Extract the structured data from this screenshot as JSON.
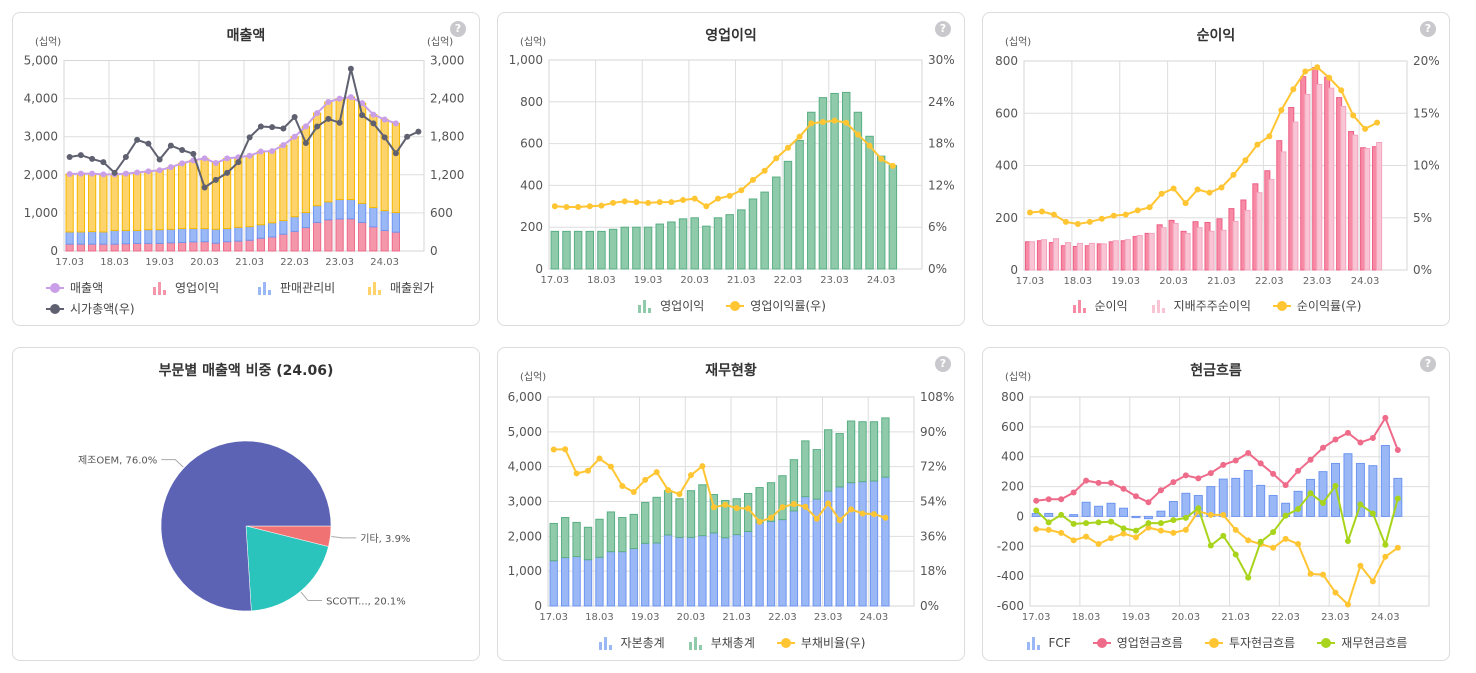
{
  "help_label": "?",
  "chart_data": [
    {
      "type": "combo",
      "title": "매출액",
      "unit_left": "(십억)",
      "unit_right": "(십억)",
      "ylim_left": [
        0,
        5000
      ],
      "yticks_left": [
        "0",
        "1,000",
        "2,000",
        "3,000",
        "4,000",
        "5,000"
      ],
      "ylim_right": [
        0,
        3000
      ],
      "yticks_right": [
        "0",
        "600",
        "1,200",
        "1,800",
        "2,400",
        "3,000"
      ],
      "x_ticks": [
        "17.03",
        "18.03",
        "19.03",
        "20.03",
        "21.03",
        "22.03",
        "23.03",
        "24.03"
      ],
      "grid": true,
      "legend": "bottom",
      "series": [
        {
          "name": "매출액",
          "kind": "line",
          "axis": "left",
          "color": "#c9a0e8",
          "values": [
            2020,
            2030,
            2030,
            2010,
            2010,
            2030,
            2060,
            2090,
            2120,
            2200,
            2300,
            2380,
            2430,
            2310,
            2430,
            2460,
            2500,
            2610,
            2620,
            2780,
            3000,
            3270,
            3620,
            3910,
            4000,
            4040,
            3880,
            3580,
            3450,
            3350
          ]
        },
        {
          "name": "영업이익",
          "kind": "bar",
          "axis": "left",
          "stack": 0,
          "color": "#f497ab",
          "border": "#ee6b8a",
          "values": [
            180,
            180,
            180,
            180,
            180,
            190,
            200,
            200,
            200,
            215,
            225,
            240,
            245,
            205,
            245,
            260,
            283,
            335,
            368,
            440,
            515,
            615,
            750,
            820,
            840,
            845,
            750,
            635,
            540,
            495
          ]
        },
        {
          "name": "판매관리비",
          "kind": "bar",
          "axis": "left",
          "stack": 1,
          "color": "#9ab8f5",
          "border": "#6f95f0",
          "values": [
            320,
            320,
            330,
            320,
            360,
            350,
            340,
            360,
            360,
            355,
            365,
            350,
            345,
            365,
            345,
            360,
            357,
            355,
            372,
            360,
            385,
            395,
            440,
            470,
            510,
            505,
            500,
            505,
            520,
            515
          ]
        },
        {
          "name": "매출원가",
          "kind": "bar",
          "axis": "left",
          "stack": 2,
          "color": "#ffd36b",
          "border": "#f5b800",
          "values": [
            1520,
            1530,
            1520,
            1510,
            1470,
            1490,
            1520,
            1530,
            1560,
            1630,
            1710,
            1790,
            1840,
            1740,
            1840,
            1840,
            1860,
            1920,
            1880,
            1980,
            2100,
            2260,
            2430,
            2620,
            2650,
            2690,
            2630,
            2440,
            2390,
            2340
          ]
        },
        {
          "name": "시가총액(우)",
          "kind": "line",
          "axis": "right",
          "color": "#5f6170",
          "values": [
            1480,
            1510,
            1450,
            1400,
            1230,
            1480,
            1750,
            1690,
            1440,
            1660,
            1590,
            1530,
            1000,
            1120,
            1230,
            1400,
            1790,
            1960,
            1950,
            1930,
            2110,
            1700,
            1960,
            2080,
            2020,
            2870,
            2140,
            2010,
            1790,
            1540,
            1800,
            1880
          ]
        }
      ]
    },
    {
      "type": "combo",
      "title": "영업이익",
      "unit_left": "(십억)",
      "ylim_left": [
        0,
        1000
      ],
      "yticks_left": [
        "0",
        "200",
        "400",
        "600",
        "800",
        "1,000"
      ],
      "ylim_right": [
        0,
        30
      ],
      "yticks_right": [
        "0%",
        "6%",
        "12%",
        "18%",
        "24%",
        "30%"
      ],
      "x_ticks": [
        "17.03",
        "18.03",
        "19.03",
        "20.03",
        "21.03",
        "22.03",
        "23.03",
        "24.03"
      ],
      "grid": true,
      "legend": "bottom",
      "series": [
        {
          "name": "영업이익",
          "kind": "bar",
          "axis": "left",
          "color": "#8fcbab",
          "border": "#5aae84",
          "values": [
            180,
            180,
            180,
            180,
            180,
            190,
            200,
            200,
            200,
            215,
            225,
            240,
            245,
            205,
            245,
            260,
            283,
            335,
            368,
            440,
            515,
            615,
            750,
            820,
            840,
            845,
            750,
            635,
            540,
            495
          ]
        },
        {
          "name": "영업이익률(우)",
          "kind": "line",
          "axis": "right",
          "color": "#ffc533",
          "values": [
            9.0,
            8.9,
            8.9,
            9.0,
            9.1,
            9.5,
            9.7,
            9.6,
            9.5,
            9.6,
            9.6,
            9.9,
            10.1,
            9.0,
            10.1,
            10.5,
            11.3,
            12.8,
            14.1,
            15.9,
            17.4,
            19.0,
            20.9,
            21.1,
            21.3,
            21.0,
            19.3,
            17.7,
            15.8,
            14.8
          ]
        }
      ]
    },
    {
      "type": "combo",
      "title": "순이익",
      "unit_left": "(십억)",
      "ylim_left": [
        0,
        800
      ],
      "yticks_left": [
        "0",
        "200",
        "400",
        "600",
        "800"
      ],
      "ylim_right": [
        0,
        20
      ],
      "yticks_right": [
        "0%",
        "5%",
        "10%",
        "15%",
        "20%"
      ],
      "x_ticks": [
        "17.03",
        "18.03",
        "19.03",
        "20.03",
        "21.03",
        "22.03",
        "23.03",
        "24.03"
      ],
      "grid": true,
      "legend": "bottom",
      "series": [
        {
          "name": "순이익",
          "kind": "bar",
          "axis": "left",
          "group": 0,
          "color": "#f78aa5",
          "border": "#ee5f86",
          "values": [
            108,
            112,
            105,
            93,
            90,
            93,
            100,
            108,
            112,
            128,
            140,
            173,
            190,
            148,
            185,
            182,
            196,
            235,
            268,
            330,
            380,
            495,
            622,
            740,
            775,
            738,
            660,
            530,
            468,
            472
          ]
        },
        {
          "name": "지배주주순이익",
          "kind": "bar",
          "axis": "left",
          "group": 1,
          "color": "#f9c5d5",
          "border": "#f3a6bf",
          "values": [
            108,
            116,
            120,
            105,
            102,
            102,
            100,
            112,
            116,
            132,
            140,
            162,
            178,
            140,
            162,
            148,
            152,
            186,
            228,
            296,
            346,
            452,
            566,
            672,
            710,
            696,
            626,
            516,
            465,
            488
          ]
        },
        {
          "name": "순이익률(우)",
          "kind": "line",
          "axis": "right",
          "color": "#ffc533",
          "values": [
            5.5,
            5.6,
            5.3,
            4.6,
            4.4,
            4.6,
            4.9,
            5.2,
            5.3,
            5.7,
            6.0,
            7.3,
            7.8,
            6.4,
            7.7,
            7.4,
            7.9,
            9.1,
            10.5,
            12.0,
            12.8,
            15.3,
            17.3,
            19.0,
            19.4,
            18.4,
            17.2,
            14.8,
            13.5,
            14.1
          ]
        }
      ]
    },
    {
      "type": "pie",
      "title": "부문별 매출액 비중 (24.06)",
      "slices": [
        {
          "label": "기타, 3.9%",
          "value": 3.9,
          "color": "#f07272"
        },
        {
          "label": "SCOTT..., 20.1%",
          "value": 20.1,
          "color": "#2ac4bd"
        },
        {
          "label": "제조OEM, 76.0%",
          "value": 76.0,
          "color": "#5c63b4"
        }
      ]
    },
    {
      "type": "combo",
      "title": "재무현황",
      "unit_left": "(십억)",
      "ylim_left": [
        0,
        6000
      ],
      "yticks_left": [
        "0",
        "1,000",
        "2,000",
        "3,000",
        "4,000",
        "5,000",
        "6,000"
      ],
      "ylim_right": [
        0,
        108
      ],
      "yticks_right": [
        "0%",
        "18%",
        "36%",
        "54%",
        "72%",
        "90%",
        "108%"
      ],
      "x_ticks": [
        "17.03",
        "18.03",
        "19.03",
        "20.03",
        "21.03",
        "22.03",
        "23.03",
        "24.03"
      ],
      "grid": true,
      "legend": "bottom",
      "series": [
        {
          "name": "자본총계",
          "kind": "bar",
          "axis": "left",
          "stack": 0,
          "color": "#9ab8f5",
          "border": "#6f95f0",
          "values": [
            1300,
            1390,
            1420,
            1330,
            1400,
            1560,
            1560,
            1650,
            1800,
            1810,
            2040,
            1970,
            1970,
            2020,
            2100,
            1960,
            2050,
            2140,
            2390,
            2430,
            2480,
            2730,
            3140,
            3070,
            3300,
            3420,
            3540,
            3570,
            3590,
            3700
          ]
        },
        {
          "name": "부채총계",
          "kind": "bar",
          "axis": "left",
          "stack": 1,
          "color": "#8fcbab",
          "border": "#5aae84",
          "values": [
            1070,
            1150,
            980,
            930,
            1090,
            1140,
            980,
            980,
            1170,
            1310,
            1270,
            1110,
            1340,
            1460,
            1100,
            1070,
            1030,
            1090,
            1010,
            1110,
            1260,
            1470,
            1600,
            1420,
            1760,
            1530,
            1770,
            1720,
            1700,
            1700
          ]
        },
        {
          "name": "부채비율(우)",
          "kind": "line",
          "axis": "right",
          "color": "#ffc533",
          "values": [
            80.9,
            81.0,
            68.5,
            69.9,
            76.2,
            72.0,
            62.0,
            58.9,
            65.2,
            69.2,
            59.9,
            57.8,
            67.6,
            72.3,
            51.0,
            52.3,
            50.6,
            50.4,
            43.5,
            45.6,
            51.1,
            52.7,
            51.3,
            45.1,
            53.0,
            44.4,
            49.9,
            47.8,
            47.5,
            45.6
          ]
        }
      ]
    },
    {
      "type": "combo",
      "title": "현금흐름",
      "unit_left": "(십억)",
      "ylim_left": [
        -600,
        800
      ],
      "yticks_left": [
        "-600",
        "-400",
        "-200",
        "0",
        "200",
        "400",
        "600",
        "800"
      ],
      "x_ticks": [
        "17.03",
        "18.03",
        "19.03",
        "20.03",
        "21.03",
        "22.03",
        "23.03",
        "24.03"
      ],
      "grid": true,
      "legend": "bottom",
      "series": [
        {
          "name": "FCF",
          "kind": "bar",
          "axis": "left",
          "color": "#9ab8f5",
          "border": "#6f95f0",
          "values": [
            20,
            20,
            0,
            12,
            95,
            68,
            88,
            55,
            -8,
            -15,
            35,
            100,
            155,
            140,
            200,
            250,
            255,
            308,
            208,
            140,
            88,
            168,
            248,
            300,
            355,
            420,
            355,
            340,
            475,
            255
          ]
        },
        {
          "name": "영업현금흐름",
          "kind": "line",
          "axis": "left",
          "color": "#ee6b8a",
          "values": [
            105,
            115,
            115,
            160,
            240,
            225,
            225,
            185,
            135,
            95,
            175,
            230,
            275,
            255,
            290,
            345,
            375,
            425,
            355,
            285,
            210,
            305,
            380,
            460,
            515,
            560,
            495,
            525,
            660,
            445
          ]
        },
        {
          "name": "투자현금흐름",
          "kind": "line",
          "axis": "left",
          "color": "#ffc533",
          "values": [
            -85,
            -90,
            -110,
            -160,
            -135,
            -185,
            -145,
            -115,
            -140,
            -75,
            -95,
            -110,
            -90,
            35,
            10,
            10,
            -90,
            -160,
            -185,
            -210,
            -150,
            -185,
            -385,
            -390,
            -510,
            -590,
            -330,
            -435,
            -270,
            -210
          ]
        },
        {
          "name": "재무현금흐름",
          "kind": "line",
          "axis": "left",
          "color": "#a8d41c",
          "values": [
            40,
            -40,
            10,
            -50,
            -45,
            -40,
            -35,
            -80,
            -95,
            -45,
            -45,
            -25,
            -10,
            55,
            -195,
            -130,
            -255,
            -410,
            -170,
            -105,
            5,
            50,
            155,
            90,
            205,
            -165,
            80,
            20,
            -190,
            120
          ]
        }
      ]
    }
  ]
}
